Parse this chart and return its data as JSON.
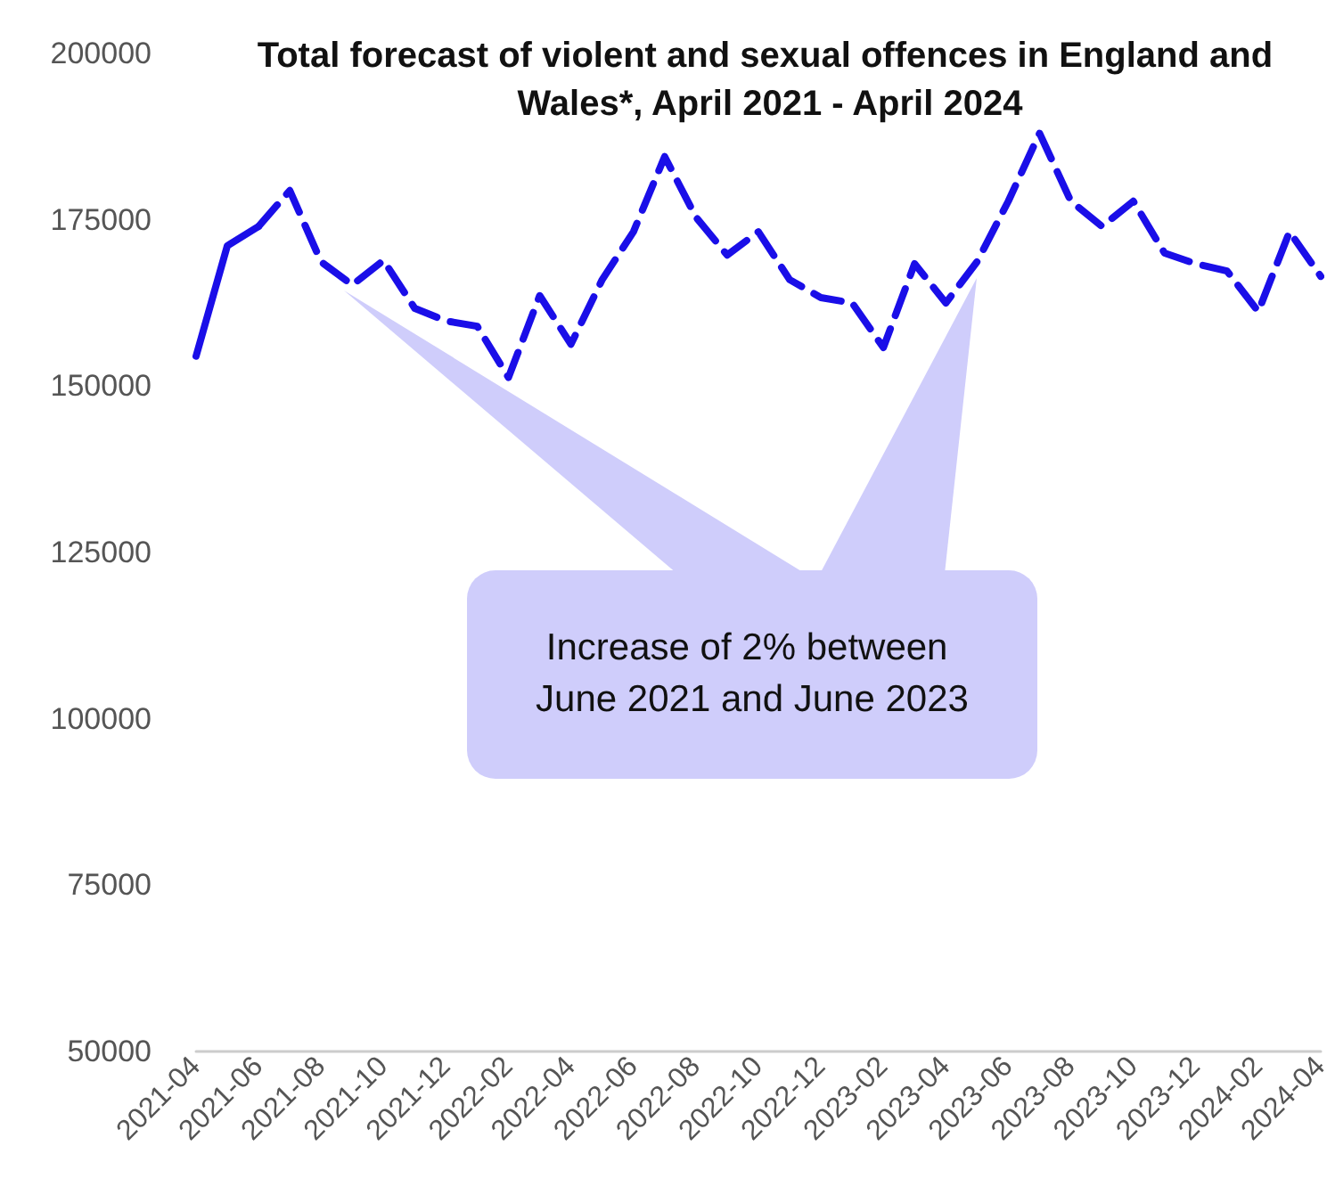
{
  "chart_data": {
    "type": "line",
    "title": "Total forecast of violent and sexual offences in England and Wales*, April 2021 - April 2024",
    "annotations": [
      "Increase of 2% between June 2021 and June 2023"
    ],
    "categories": [
      "2021-04",
      null,
      "2021-06",
      null,
      "2021-08",
      null,
      "2021-10",
      null,
      "2021-12",
      null,
      "2022-02",
      null,
      "2022-04",
      null,
      "2022-06",
      null,
      "2022-08",
      null,
      "2022-10",
      null,
      "2022-12",
      null,
      "2023-02",
      null,
      "2023-04",
      null,
      "2023-06",
      null,
      "2023-08",
      null,
      "2023-10",
      null,
      "2023-12",
      null,
      "2024-02",
      null,
      "2024-04"
    ],
    "series": [
      {
        "color": "#1a0ee8",
        "line_style": "solid",
        "values": [
          154500,
          171100,
          174000,
          null,
          null,
          null,
          null,
          null,
          null,
          null,
          null,
          null,
          null,
          null,
          null,
          null,
          null,
          null,
          null,
          null,
          null,
          null,
          null,
          null,
          null,
          null,
          null,
          null,
          null,
          null,
          null,
          null,
          null,
          null,
          null,
          null,
          null
        ]
      },
      {
        "color": "#1a0ee8",
        "line_style": "dashed",
        "values": [
          null,
          null,
          174000,
          179400,
          168700,
          165200,
          168900,
          161700,
          159800,
          159000,
          151300,
          163600,
          156300,
          166000,
          173200,
          184500,
          175400,
          169700,
          173200,
          166000,
          163300,
          162500,
          155800,
          168400,
          162500,
          168700,
          177800,
          188000,
          177800,
          174000,
          177800,
          170000,
          168400,
          167300,
          161200,
          173200,
          166500
        ]
      }
    ],
    "ylim": [
      50000,
      200000
    ],
    "yticks": [
      50000,
      75000,
      100000,
      125000,
      150000,
      175000,
      200000
    ],
    "grid": false
  }
}
